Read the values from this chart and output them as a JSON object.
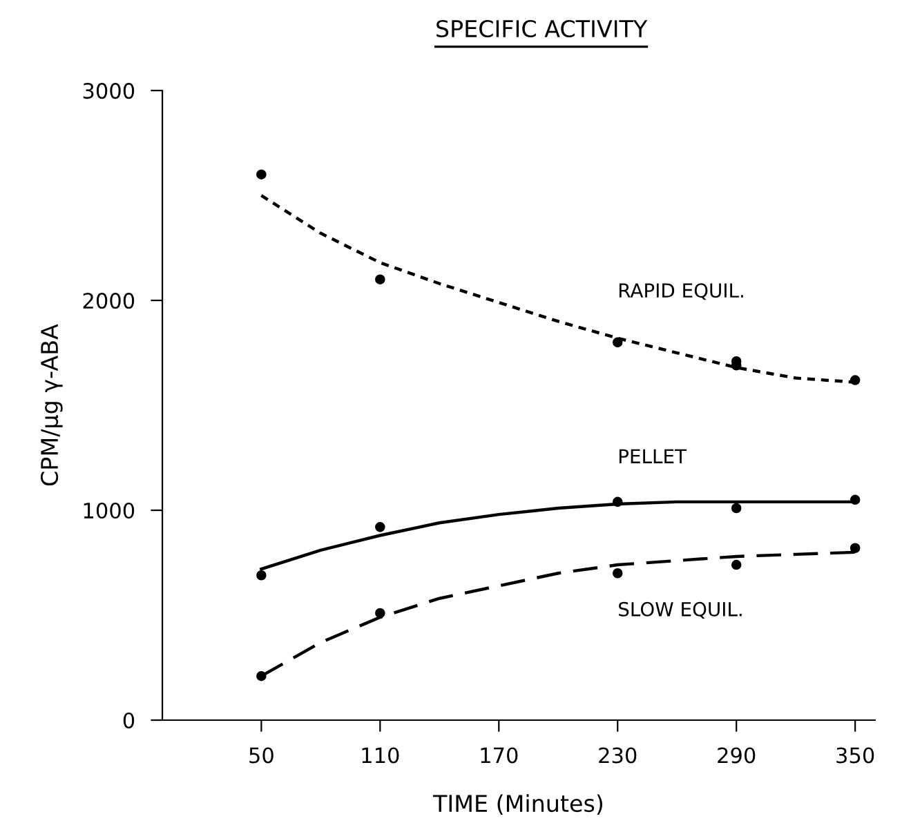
{
  "chart_data": {
    "type": "scatter",
    "title": "SPECIFIC ACTIVITY",
    "xlabel": "TIME (Minutes)",
    "ylabel": "CPM/µg γ-ABA",
    "xlim": [
      0,
      360
    ],
    "xticks": [
      50,
      110,
      170,
      230,
      290,
      350
    ],
    "ylim": [
      0,
      3000
    ],
    "yticks": [
      0,
      1000,
      2000,
      3000
    ],
    "grid": false,
    "legend": false,
    "marker": "circle",
    "series": [
      {
        "color": "#000000",
        "x": [
          50,
          110,
          230,
          290,
          290,
          350
        ],
        "values": [
          2600,
          2100,
          1800,
          1710,
          1690,
          1620
        ]
      },
      {
        "color": "#000000",
        "x": [
          50,
          110,
          230,
          290,
          350
        ],
        "values": [
          690,
          920,
          1040,
          1010,
          1050
        ]
      },
      {
        "color": "#000000",
        "x": [
          50,
          110,
          230,
          290,
          350
        ],
        "values": [
          210,
          510,
          700,
          740,
          820
        ]
      },
      {
        "type": "line",
        "name": "RAPID EQUIL.",
        "color": "#000000",
        "line_style": "dotted",
        "marker": "none",
        "x": [
          50,
          80,
          110,
          140,
          170,
          200,
          230,
          260,
          290,
          320,
          350
        ],
        "values": [
          2500,
          2320,
          2180,
          2080,
          1990,
          1900,
          1820,
          1750,
          1680,
          1630,
          1610
        ]
      },
      {
        "type": "line",
        "name": "PELLET",
        "color": "#000000",
        "line_style": "solid",
        "marker": "none",
        "x": [
          50,
          80,
          110,
          140,
          170,
          200,
          230,
          260,
          290,
          320,
          350
        ],
        "values": [
          720,
          810,
          880,
          940,
          980,
          1010,
          1030,
          1040,
          1040,
          1040,
          1040
        ]
      },
      {
        "type": "line",
        "name": "SLOW EQUIL.",
        "color": "#000000",
        "line_style": "dashed",
        "marker": "none",
        "x": [
          50,
          80,
          110,
          140,
          170,
          200,
          230,
          260,
          290,
          320,
          350
        ],
        "values": [
          210,
          370,
          490,
          580,
          640,
          700,
          740,
          760,
          780,
          790,
          800
        ]
      }
    ]
  }
}
